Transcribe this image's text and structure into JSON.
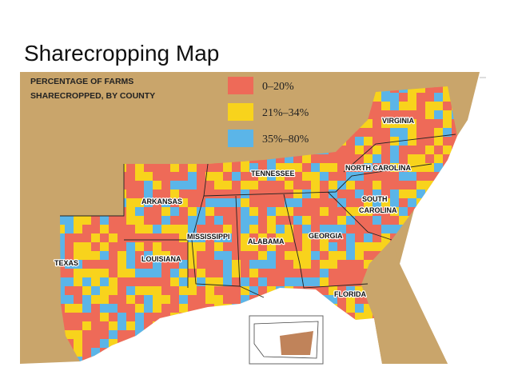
{
  "header": {
    "title": "Sharecropping Map"
  },
  "legend": {
    "heading": [
      "PERCENTAGE OF FARMS",
      "SHARECROPPED, BY COUNTY"
    ],
    "items": [
      {
        "label": "0–20%",
        "color": "#ee6a58"
      },
      {
        "label": "21%–34%",
        "color": "#f8d31c"
      },
      {
        "label": "35%–80%",
        "color": "#5bb5e8"
      }
    ]
  },
  "states": [
    "VIRGINIA",
    "TENNESSEE",
    "NORTH CAROLINA",
    "ARKANSAS",
    "SOUTH",
    "CAROLINA",
    "MISSISSIPPI",
    "ALABAMA",
    "GEORGIA",
    "LOUISIANA",
    "TEXAS",
    "FLORIDA"
  ]
}
